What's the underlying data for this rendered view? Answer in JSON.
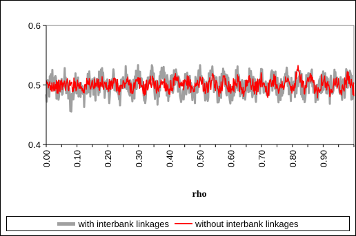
{
  "chart_data": {
    "type": "line",
    "title": "",
    "xlabel": "rho",
    "ylabel": "",
    "xlim": [
      0.0,
      1.0
    ],
    "ylim": [
      0.4,
      0.6
    ],
    "grid": false,
    "legend_placement": "bottom",
    "y_ticks": [
      "0.4",
      "0.5",
      "0.6"
    ],
    "x_ticks": [
      "0.00",
      "0.10",
      "0.20",
      "0.30",
      "0.40",
      "0.50",
      "0.60",
      "0.70",
      "0.80",
      "0.90"
    ],
    "series": [
      {
        "name": "with interbank linkages",
        "color": "#a0a0a0",
        "x": [
          0.0,
          0.02,
          0.04,
          0.06,
          0.08,
          0.1,
          0.12,
          0.14,
          0.16,
          0.18,
          0.2,
          0.22,
          0.24,
          0.26,
          0.28,
          0.3,
          0.32,
          0.34,
          0.36,
          0.38,
          0.4,
          0.42,
          0.44,
          0.46,
          0.48,
          0.5,
          0.52,
          0.54,
          0.56,
          0.58,
          0.6,
          0.62,
          0.64,
          0.66,
          0.68,
          0.7,
          0.72,
          0.74,
          0.76,
          0.78,
          0.8,
          0.82,
          0.84,
          0.86,
          0.88,
          0.9,
          0.92,
          0.94,
          0.96,
          0.98,
          1.0
        ],
        "values": [
          0.455,
          0.525,
          0.47,
          0.515,
          0.44,
          0.52,
          0.46,
          0.51,
          0.475,
          0.53,
          0.47,
          0.52,
          0.465,
          0.535,
          0.47,
          0.53,
          0.475,
          0.54,
          0.47,
          0.53,
          0.48,
          0.525,
          0.475,
          0.52,
          0.47,
          0.525,
          0.48,
          0.52,
          0.475,
          0.525,
          0.47,
          0.53,
          0.48,
          0.52,
          0.475,
          0.525,
          0.465,
          0.53,
          0.47,
          0.525,
          0.475,
          0.535,
          0.48,
          0.525,
          0.47,
          0.52,
          0.475,
          0.525,
          0.48,
          0.52,
          0.475
        ]
      },
      {
        "name": "without interbank linkages",
        "color": "#ff0000",
        "x": [
          0.0,
          0.02,
          0.04,
          0.06,
          0.08,
          0.1,
          0.12,
          0.14,
          0.16,
          0.18,
          0.2,
          0.22,
          0.24,
          0.26,
          0.28,
          0.3,
          0.32,
          0.34,
          0.36,
          0.38,
          0.4,
          0.42,
          0.44,
          0.46,
          0.48,
          0.5,
          0.52,
          0.54,
          0.56,
          0.58,
          0.6,
          0.62,
          0.64,
          0.66,
          0.68,
          0.7,
          0.72,
          0.74,
          0.76,
          0.78,
          0.8,
          0.82,
          0.84,
          0.86,
          0.88,
          0.9,
          0.92,
          0.94,
          0.96,
          0.98,
          1.0
        ],
        "values": [
          0.495,
          0.502,
          0.493,
          0.503,
          0.497,
          0.505,
          0.49,
          0.507,
          0.495,
          0.51,
          0.49,
          0.508,
          0.486,
          0.512,
          0.49,
          0.51,
          0.485,
          0.515,
          0.49,
          0.512,
          0.484,
          0.515,
          0.488,
          0.51,
          0.485,
          0.518,
          0.484,
          0.515,
          0.482,
          0.52,
          0.486,
          0.515,
          0.48,
          0.518,
          0.485,
          0.52,
          0.48,
          0.522,
          0.484,
          0.52,
          0.478,
          0.548,
          0.48,
          0.522,
          0.476,
          0.525,
          0.48,
          0.52,
          0.478,
          0.525,
          0.48
        ]
      }
    ]
  }
}
